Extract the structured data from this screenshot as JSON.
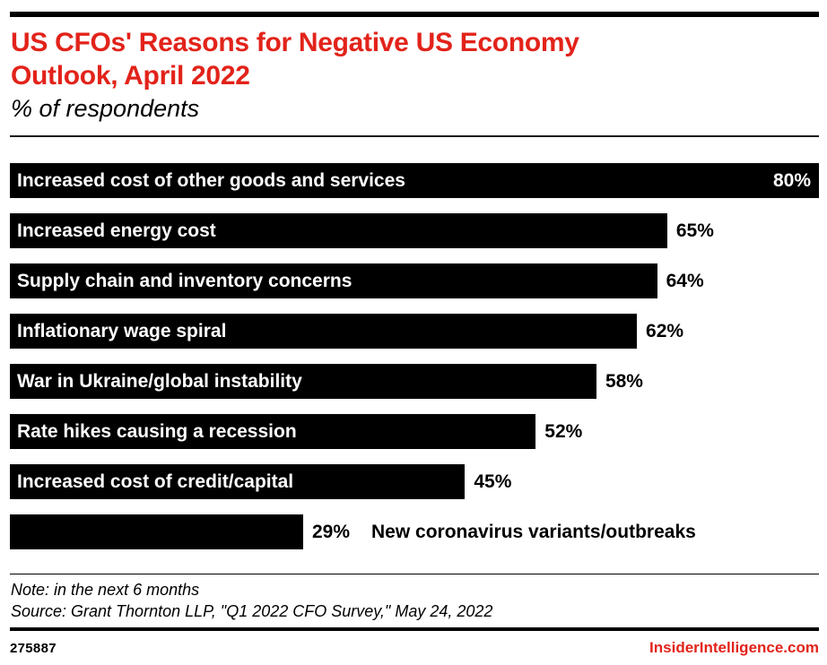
{
  "header": {
    "title_lines": [
      "US CFOs' Reasons for Negative US Economy",
      "Outlook, April 2022"
    ],
    "subtitle": "% of respondents"
  },
  "chart_data": {
    "type": "bar",
    "orientation": "horizontal",
    "title": "US CFOs' Reasons for Negative US Economy Outlook, April 2022",
    "subtitle": "% of respondents",
    "xlabel": "",
    "ylabel": "",
    "unit": "%",
    "xlim": [
      0,
      80
    ],
    "max_value": 80,
    "grid": false,
    "legend": false,
    "categories": [
      "Increased cost of other goods and services",
      "Increased energy cost",
      "Supply chain and inventory concerns",
      "Inflationary wage spiral",
      "War in Ukraine/global instability",
      "Rate hikes causing a recession",
      "Increased cost of credit/capital",
      "New coronavirus variants/outbreaks"
    ],
    "values": [
      80,
      65,
      64,
      62,
      58,
      52,
      45,
      29
    ],
    "value_labels": [
      "80%",
      "65%",
      "64%",
      "62%",
      "58%",
      "52%",
      "45%",
      "29%"
    ],
    "label_position": [
      "inside",
      "inside",
      "inside",
      "inside",
      "inside",
      "inside",
      "inside",
      "outside"
    ],
    "value_position": [
      "inside",
      "outside",
      "outside",
      "outside",
      "outside",
      "outside",
      "outside",
      "outside"
    ],
    "bar_color": "#000000",
    "inside_text_color": "#ffffff",
    "outside_text_color": "#000000"
  },
  "footnotes": {
    "note": "Note: in the next 6 months",
    "source": "Source: Grant Thornton LLP, \"Q1 2022 CFO Survey,\" May 24, 2022"
  },
  "footer": {
    "chart_id": "275887",
    "site": "InsiderIntelligence.com"
  },
  "colors": {
    "accent_red": "#e2231a",
    "bar_black": "#000000",
    "background": "#ffffff"
  }
}
